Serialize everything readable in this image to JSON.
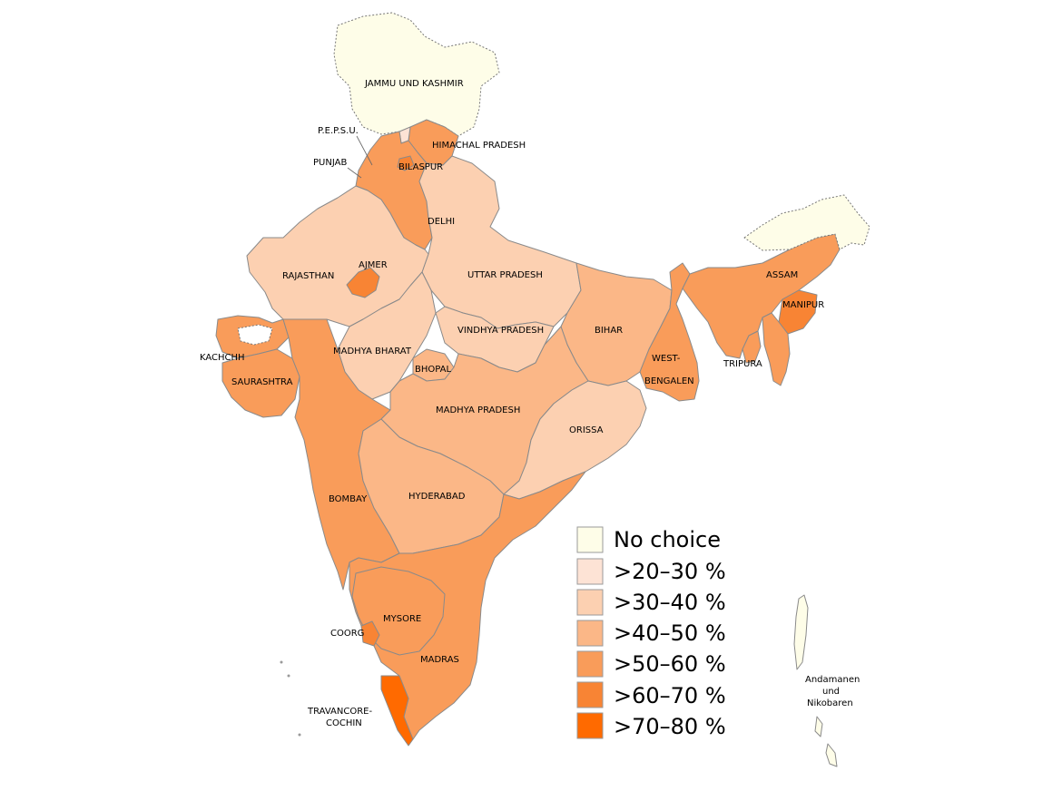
{
  "colors": {
    "no_choice": "#fefde8",
    "c20_30": "#fde3d5",
    "c30_40": "#fcd0b1",
    "c40_50": "#fbb787",
    "c50_60": "#f99c5a",
    "c60_70": "#f88434",
    "c70_80": "#ff6a00"
  },
  "regions": {
    "jammu": "JAMMU UND KASHMIR",
    "pepsu": "P.E.P.S.U.",
    "himachal": "HIMACHAL PRADESH",
    "punjab": "PUNJAB",
    "bilaspur": "BILASPUR",
    "delhi": "DELHI",
    "rajasthan": "RAJASTHAN",
    "ajmer": "AJMER",
    "uttar": "UTTAR PRADESH",
    "bihar": "BIHAR",
    "assam": "ASSAM",
    "manipur": "MANIPUR",
    "tripura": "TRIPURA",
    "west_bengal_1": "WEST-",
    "west_bengal_2": "BENGALEN",
    "vindhya": "VINDHYA PRADESH",
    "madhya_bharat": "MADHYA BHARAT",
    "bhopal": "BHOPAL",
    "kachchh": "KACHCHH",
    "saurashtra": "SAURASHTRA",
    "madhya_pradesh": "MADHYA PRADESH",
    "orissa": "ORISSA",
    "bombay": "BOMBAY",
    "hyderabad": "HYDERABAD",
    "mysore": "MYSORE",
    "coorg": "COORG",
    "madras": "MADRAS",
    "travancore_1": "TRAVANCORE-",
    "travancore_2": "COCHIN",
    "andaman_1": "Andamanen",
    "andaman_2": "und",
    "andaman_3": "Nikobaren"
  },
  "legend": {
    "items": [
      {
        "label": "No choice",
        "color": "#fefde8"
      },
      {
        "label": ">20–30 %",
        "color": "#fde3d5"
      },
      {
        "label": ">30–40 %",
        "color": "#fcd0b1"
      },
      {
        "label": ">40–50 %",
        "color": "#fbb787"
      },
      {
        "label": ">50–60 %",
        "color": "#f99c5a"
      },
      {
        "label": ">60–70 %",
        "color": "#f88434"
      },
      {
        "label": ">70–80 %",
        "color": "#ff6a00"
      }
    ]
  }
}
